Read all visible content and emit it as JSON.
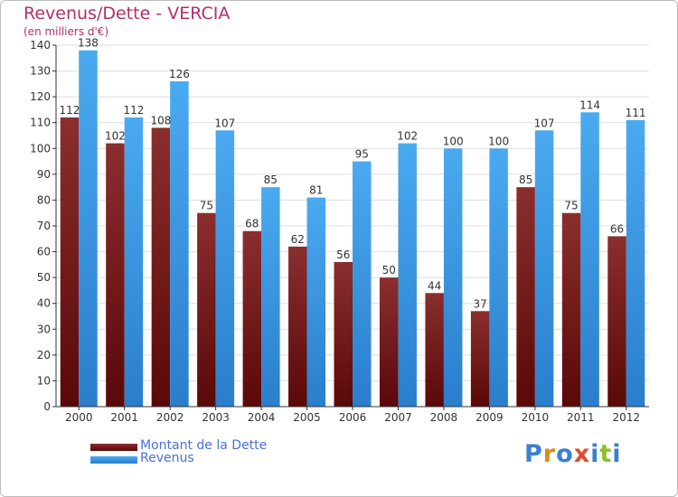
{
  "header": {
    "title": "Revenus/Dette - VERCIA",
    "subtitle": "(en milliers d'€)"
  },
  "legend": {
    "dette_label": "Montant de la Dette",
    "revenus_label": "Revenus"
  },
  "logo": {
    "text": "Proxiti",
    "letters": [
      "P",
      "r",
      "o",
      "x",
      "i",
      "t",
      "i"
    ],
    "colors": [
      "#3a7fd0",
      "#e08a1e",
      "#3a7fd0",
      "#e04a2a",
      "#3a7fd0",
      "#8fbf2a",
      "#3a7fd0"
    ]
  },
  "colors": {
    "dette": "#7a1a1a",
    "revenus": "#3a9ae0",
    "grid": "#dddddd",
    "axis": "#333333",
    "title": "#b0306a"
  },
  "chart_data": {
    "type": "bar",
    "title": "Revenus/Dette - VERCIA",
    "subtitle": "(en milliers d'€)",
    "xlabel": "",
    "ylabel": "",
    "categories": [
      "2000",
      "2001",
      "2002",
      "2003",
      "2004",
      "2005",
      "2006",
      "2007",
      "2008",
      "2009",
      "2010",
      "2011",
      "2012"
    ],
    "series": [
      {
        "name": "Montant de la Dette",
        "values": [
          112,
          102,
          108,
          75,
          68,
          62,
          56,
          50,
          44,
          37,
          85,
          75,
          66
        ]
      },
      {
        "name": "Revenus",
        "values": [
          138,
          112,
          126,
          107,
          85,
          81,
          95,
          102,
          100,
          100,
          107,
          114,
          111
        ]
      }
    ],
    "ylim": [
      0,
      140
    ],
    "yticks": [
      0,
      10,
      20,
      30,
      40,
      50,
      60,
      70,
      80,
      90,
      100,
      110,
      120,
      130,
      140
    ],
    "grid": true,
    "legend_position": "bottom-left"
  }
}
